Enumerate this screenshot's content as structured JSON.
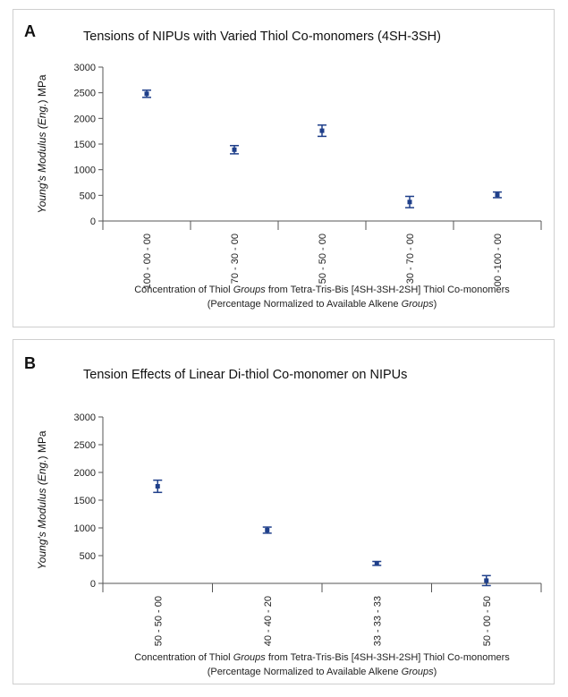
{
  "chart_data": [
    {
      "type": "scatter",
      "panel_label": "A",
      "title": "Tensions of NIPUs with Varied Thiol Co-monomers (4SH-3SH)",
      "ylabel_parts": [
        {
          "text": "Young's Modulus (",
          "italic": true
        },
        {
          "text": "Eng.",
          "italic": true
        },
        {
          "text": ") MPa",
          "italic": false
        }
      ],
      "xlabel_line1_parts": [
        {
          "text": "Concentration of Thiol ",
          "italic": false
        },
        {
          "text": "Groups",
          "italic": true
        },
        {
          "text": " from Tetra-Tris-Bis [4SH-3SH-2SH] Thiol Co-monomers",
          "italic": false
        }
      ],
      "xlabel_line2_parts": [
        {
          "text": "(Percentage Normalized to Available Alkene ",
          "italic": false
        },
        {
          "text": "Groups",
          "italic": true
        },
        {
          "text": ")",
          "italic": false
        }
      ],
      "ylim": [
        0,
        3000
      ],
      "yticks": [
        0,
        500,
        1000,
        1500,
        2000,
        2500,
        3000
      ],
      "categories": [
        "100 - 00 - 00",
        "70 - 30 - 00",
        "50 - 50 - 00",
        "30 - 70 - 00",
        "00 -100 - 00"
      ],
      "values": [
        2480,
        1390,
        1760,
        370,
        510
      ],
      "errors": [
        70,
        80,
        110,
        110,
        55
      ],
      "color": "#1f3f8a"
    },
    {
      "type": "scatter",
      "panel_label": "B",
      "title": "Tension Effects of Linear Di-thiol Co-monomer on NIPUs",
      "ylabel_parts": [
        {
          "text": "Young's Modulus (",
          "italic": true
        },
        {
          "text": "Eng.",
          "italic": true
        },
        {
          "text": ") MPa",
          "italic": false
        }
      ],
      "xlabel_line1_parts": [
        {
          "text": "Concentration of Thiol ",
          "italic": false
        },
        {
          "text": "Groups",
          "italic": true
        },
        {
          "text": " from Tetra-Tris-Bis [4SH-3SH-2SH] Thiol Co-monomers",
          "italic": false
        }
      ],
      "xlabel_line2_parts": [
        {
          "text": "(Percentage Normalized to Available Alkene ",
          "italic": false
        },
        {
          "text": "Groups",
          "italic": true
        },
        {
          "text": ")",
          "italic": false
        }
      ],
      "ylim": [
        0,
        3000
      ],
      "yticks": [
        0,
        500,
        1000,
        1500,
        2000,
        2500,
        3000
      ],
      "categories": [
        "50 - 50 - 00",
        "40 - 40 - 20",
        "33 - 33 - 33",
        "50 - 00 - 50"
      ],
      "values": [
        1750,
        960,
        360,
        50
      ],
      "errors": [
        110,
        55,
        35,
        90
      ],
      "color": "#1f3f8a"
    }
  ]
}
